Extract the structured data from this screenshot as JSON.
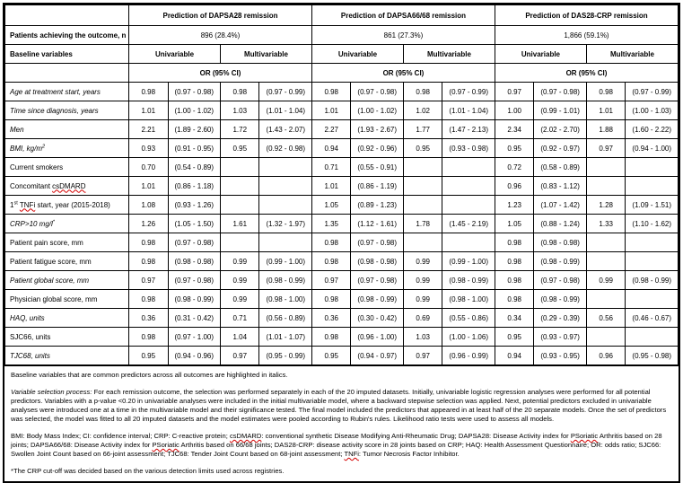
{
  "header": {
    "groups": [
      {
        "title": "Prediction of DAPSA28 remission",
        "outcome_n": "896 (28.4%)"
      },
      {
        "title": "Prediction of DAPSA66/68 remission",
        "outcome_n": "861 (27.3%)"
      },
      {
        "title": "Prediction of DAS28-CRP remission",
        "outcome_n": "1,866 (59.1%)"
      }
    ],
    "patients_row_label": "Patients achieving the outcome, n (%)",
    "baseline_variables_label": "Baseline variables",
    "univariable_label": "Univariable",
    "multivariable_label": "Multivariable",
    "or_ci_label": "OR (95% CI)"
  },
  "rows": [
    {
      "italic": true,
      "label_parts": [
        {
          "t": "Age at treatment start, years"
        }
      ],
      "values": [
        "0.98",
        "(0.97 - 0.98)",
        "0.98",
        "(0.97 - 0.99)",
        "0.98",
        "(0.97 - 0.98)",
        "0.98",
        "(0.97 - 0.99)",
        "0.97",
        "(0.97 - 0.98)",
        "0.98",
        "(0.97 - 0.99)"
      ]
    },
    {
      "italic": true,
      "label_parts": [
        {
          "t": "Time since diagnosis, years"
        }
      ],
      "values": [
        "1.01",
        "(1.00 - 1.02)",
        "1.03",
        "(1.01 - 1.04)",
        "1.01",
        "(1.00 - 1.02)",
        "1.02",
        "(1.01 - 1.04)",
        "1.00",
        "(0.99 - 1.01)",
        "1.01",
        "(1.00 - 1.03)"
      ]
    },
    {
      "italic": true,
      "label_parts": [
        {
          "t": "Men"
        }
      ],
      "values": [
        "2.21",
        "(1.89 - 2.60)",
        "1.72",
        "(1.43 - 2.07)",
        "2.27",
        "(1.93 - 2.67)",
        "1.77",
        "(1.47 - 2.13)",
        "2.34",
        "(2.02 - 2.70)",
        "1.88",
        "(1.60 - 2.22)"
      ]
    },
    {
      "italic": true,
      "label_parts": [
        {
          "t": "BMI, kg/m"
        },
        {
          "t": "2",
          "s": "sup"
        }
      ],
      "values": [
        "0.93",
        "(0.91 - 0.95)",
        "0.95",
        "(0.92 - 0.98)",
        "0.94",
        "(0.92 - 0.96)",
        "0.95",
        "(0.93 - 0.98)",
        "0.95",
        "(0.92 - 0.97)",
        "0.97",
        "(0.94 - 1.00)"
      ]
    },
    {
      "italic": false,
      "label_parts": [
        {
          "t": "Current smokers"
        }
      ],
      "values": [
        "0.70",
        "(0.54 - 0.89)",
        "",
        "",
        "0.71",
        "(0.55 - 0.91)",
        "",
        "",
        "0.72",
        "(0.58 - 0.89)",
        "",
        ""
      ]
    },
    {
      "italic": false,
      "label_parts": [
        {
          "t": "Concomitant "
        },
        {
          "t": "csDMARD",
          "s": "sq"
        }
      ],
      "values": [
        "1.01",
        "(0.86 - 1.18)",
        "",
        "",
        "1.01",
        "(0.86 - 1.19)",
        "",
        "",
        "0.96",
        "(0.83 - 1.12)",
        "",
        ""
      ]
    },
    {
      "italic": false,
      "label_parts": [
        {
          "t": "1"
        },
        {
          "t": "st",
          "s": "sup"
        },
        {
          "t": " "
        },
        {
          "t": "TNFi",
          "s": "sq"
        },
        {
          "t": " start, year (2015-2018)"
        }
      ],
      "values": [
        "1.08",
        "(0.93 - 1.26)",
        "",
        "",
        "1.05",
        "(0.89 - 1.23)",
        "",
        "",
        "1.23",
        "(1.07 - 1.42)",
        "1.28",
        "(1.09 - 1.51)"
      ]
    },
    {
      "italic": true,
      "label_parts": [
        {
          "t": "CRP>10 mg/l"
        },
        {
          "t": "*",
          "s": "sup"
        }
      ],
      "values": [
        "1.26",
        "(1.05 - 1.50)",
        "1.61",
        "(1.32 - 1.97)",
        "1.35",
        "(1.12 - 1.61)",
        "1.78",
        "(1.45 - 2.19)",
        "1.05",
        "(0.88 - 1.24)",
        "1.33",
        "(1.10 - 1.62)"
      ]
    },
    {
      "italic": false,
      "label_parts": [
        {
          "t": "Patient pain score, mm"
        }
      ],
      "values": [
        "0.98",
        "(0.97 - 0.98)",
        "",
        "",
        "0.98",
        "(0.97 - 0.98)",
        "",
        "",
        "0.98",
        "(0.98 - 0.98)",
        "",
        ""
      ]
    },
    {
      "italic": false,
      "label_parts": [
        {
          "t": "Patient fatigue score, mm"
        }
      ],
      "values": [
        "0.98",
        "(0.98 - 0.98)",
        "0.99",
        "(0.99 - 1.00)",
        "0.98",
        "(0.98 - 0.98)",
        "0.99",
        "(0.99 - 1.00)",
        "0.98",
        "(0.98 - 0.99)",
        "",
        ""
      ]
    },
    {
      "italic": true,
      "label_parts": [
        {
          "t": "Patient global score, mm"
        }
      ],
      "values": [
        "0.97",
        "(0.97 - 0.98)",
        "0.99",
        "(0.98 - 0.99)",
        "0.97",
        "(0.97 - 0.98)",
        "0.99",
        "(0.98 - 0.99)",
        "0.98",
        "(0.97 - 0.98)",
        "0.99",
        "(0.98 - 0.99)"
      ]
    },
    {
      "italic": false,
      "label_parts": [
        {
          "t": "Physician global score, mm"
        }
      ],
      "values": [
        "0.98",
        "(0.98 - 0.99)",
        "0.99",
        "(0.98 - 1.00)",
        "0.98",
        "(0.98 - 0.99)",
        "0.99",
        "(0.98 - 1.00)",
        "0.98",
        "(0.98 - 0.99)",
        "",
        ""
      ]
    },
    {
      "italic": true,
      "label_parts": [
        {
          "t": "HAQ, units"
        }
      ],
      "values": [
        "0.36",
        "(0.31 - 0.42)",
        "0.71",
        "(0.56 - 0.89)",
        "0.36",
        "(0.30 - 0.42)",
        "0.69",
        "(0.55 - 0.86)",
        "0.34",
        "(0.29 - 0.39)",
        "0.56",
        "(0.46 - 0.67)"
      ]
    },
    {
      "italic": false,
      "label_parts": [
        {
          "t": "SJC66, units"
        }
      ],
      "values": [
        "0.98",
        "(0.97 - 1.00)",
        "1.04",
        "(1.01 - 1.07)",
        "0.98",
        "(0.96 - 1.00)",
        "1.03",
        "(1.00 - 1.06)",
        "0.95",
        "(0.93 - 0.97)",
        "",
        ""
      ]
    },
    {
      "italic": true,
      "label_parts": [
        {
          "t": "TJC68, units"
        }
      ],
      "values": [
        "0.95",
        "(0.94 - 0.96)",
        "0.97",
        "(0.95 - 0.99)",
        "0.95",
        "(0.94 - 0.97)",
        "0.97",
        "(0.96 - 0.99)",
        "0.94",
        "(0.93 - 0.95)",
        "0.96",
        "(0.95 - 0.98)"
      ]
    }
  ],
  "footnotes": {
    "italics_note": "Baseline variables that are common predictors across all outcomes are highlighted in italics.",
    "selection_lead": "Variable selection process:",
    "selection_body": " For each remission outcome, the selection was performed separately in each of the 20 imputed datasets. Initially, univariable logistic regression analyses were performed for all potential predictors. Variables with a p-value <0.20 in univariable analyses were included in the initial multivariable model, where a backward stepwise selection was applied. Next, potential predictors excluded in univariable analyses were introduced one at a time in the multivariable model and their significance tested. The final model included the predictors that appeared in at least half of the 20 separate models. Once the set of predictors was selected, the model was fitted to all 20 imputed datasets and the model estimates were pooled according to Rubin's rules. Likelihood ratio tests were used to assess all models.",
    "abbrev_parts": [
      {
        "text": "BMI: Body Mass Index; CI: confidence interval; CRP: C-reactive protein; ",
        "squiggle": false
      },
      {
        "text": "csDMARD",
        "squiggle": true
      },
      {
        "text": ": conventional synthetic Disease Modifying Anti-Rheumatic Drug; DAPSA28: Disease Activity index for ",
        "squiggle": false
      },
      {
        "text": "PSoriatic",
        "squiggle": true
      },
      {
        "text": " Arthritis based on 28 joints; DAPSA66/68: Disease Activity index for ",
        "squiggle": false
      },
      {
        "text": "PSoriatic",
        "squiggle": true
      },
      {
        "text": " Arthritis based on 66/68 joints; DAS28-CRP: disease activity score in 28 joints based on CRP; HAQ: Health Assessment Questionnaire; OR: odds ratio; SJC66: Swollen Joint Count based on 66-joint assessment; TJC68: Tender Joint Count based on 68-joint assessment; ",
        "squiggle": false
      },
      {
        "text": "TNFi",
        "squiggle": true
      },
      {
        "text": ": Tumor Necrosis Factor Inhibitor.",
        "squiggle": false
      }
    ],
    "crp_note": "*The CRP cut-off was decided based on the various detection limits used across registries."
  }
}
